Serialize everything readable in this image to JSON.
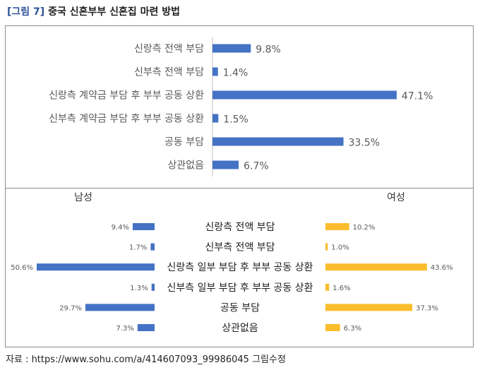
{
  "figure": {
    "tag": "[그림 7]",
    "title": "중국 신혼부부 신혼집 마련 방법"
  },
  "source": "자료 : https://www.sohu.com/a/414607093_99986045 그림수정",
  "colors": {
    "male": "#4472c4",
    "female": "#fbbd2e",
    "text": "#595959",
    "axis": "#bfbfbf"
  },
  "chart_data": [
    {
      "type": "bar",
      "orientation": "horizontal",
      "categories": [
        "신랑측 전액 부담",
        "신부측 전액 부담",
        "신랑측 계약금 부담 후 부부 공동 상환",
        "신부측 계약금 부담 후 부부 공동 상환",
        "공동 부담",
        "상관없음"
      ],
      "values": [
        9.8,
        1.4,
        47.1,
        1.5,
        33.5,
        6.7
      ],
      "labels": [
        "9.8%",
        "1.4%",
        "47.1%",
        "1.5%",
        "33.5%",
        "6.7%"
      ],
      "xlim": [
        0,
        50
      ],
      "legend": "none"
    },
    {
      "type": "bar",
      "orientation": "horizontal-butterfly",
      "categories": [
        "신랑측 전액 부담",
        "신부측 전액 부담",
        "신랑측 일부 부담 후 부부 공동 상환",
        "신부측 일부 부담 후 부부 공동 상환",
        "공동 부담",
        "상관없음"
      ],
      "series": [
        {
          "name": "남성",
          "values": [
            9.4,
            1.7,
            50.6,
            1.3,
            29.7,
            7.3
          ],
          "labels": [
            "9.4%",
            "1.7%",
            "50.6%",
            "1.3%",
            "29.7%",
            "7.3%"
          ]
        },
        {
          "name": "여성",
          "values": [
            10.2,
            1.0,
            43.6,
            1.6,
            37.3,
            6.3
          ],
          "labels": [
            "10.2%",
            "1.0%",
            "43.6%",
            "1.6%",
            "37.3%",
            "6.3%"
          ]
        }
      ],
      "legend": "top"
    }
  ]
}
